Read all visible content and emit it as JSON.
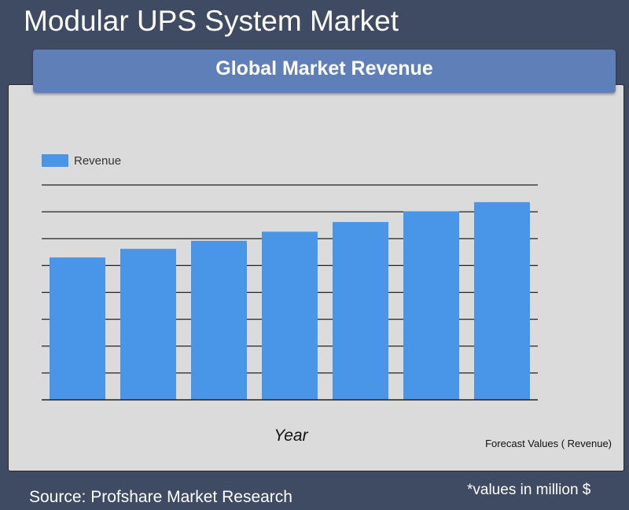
{
  "page": {
    "title": "Modular UPS System Market",
    "banner": "Global Market Revenue",
    "source": "Source: Profshare Market Research",
    "units_note": "*values in million $"
  },
  "colors": {
    "background": "#3f4a63",
    "banner": "#5f7fb8",
    "panel": "#dbdbdb",
    "bar": "#4996e8"
  },
  "chart_data": {
    "type": "bar",
    "categories": [
      "",
      "",
      "",
      "",
      "",
      "",
      ""
    ],
    "series": [
      {
        "name": "Revenue",
        "values": [
          53,
          56.2,
          59.2,
          62.6,
          66.2,
          70.2,
          73.6
        ]
      }
    ],
    "xlabel": "Year",
    "ylabel": "",
    "ylim": [
      0,
      80
    ],
    "yticks": [
      0,
      10,
      20,
      30,
      40,
      50,
      60,
      70,
      80
    ],
    "grid": true,
    "legend": "top-left",
    "note": "Forecast Values ( Revenue)"
  }
}
